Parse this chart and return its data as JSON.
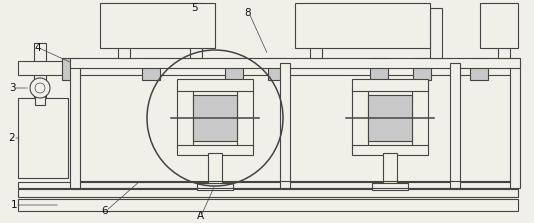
{
  "fig_width": 5.34,
  "fig_height": 2.23,
  "dpi": 100,
  "bg_color": "#f0efe8",
  "lc": "#444444",
  "lw": 0.8,
  "tlw": 0.5,
  "xlim": [
    0,
    534
  ],
  "ylim": [
    0,
    223
  ]
}
